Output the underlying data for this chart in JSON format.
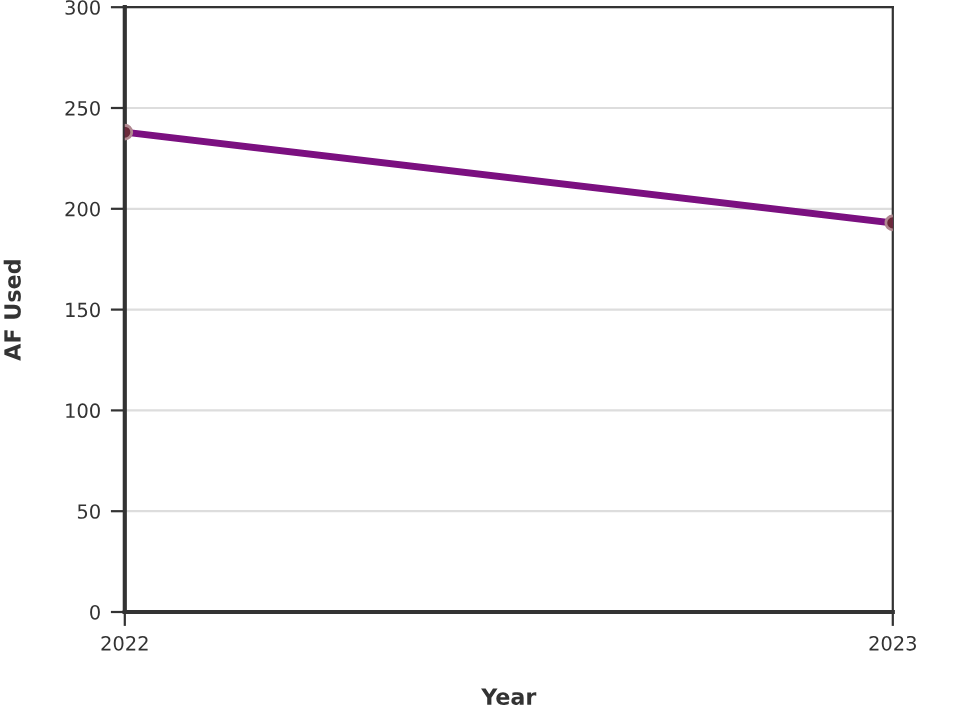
{
  "chart_data": {
    "type": "line",
    "xlabel": "Year",
    "ylabel": "AF Used",
    "x": [
      2022,
      2023
    ],
    "series": [
      {
        "color": "#7b1080",
        "values": [
          238,
          193
        ]
      }
    ],
    "xlim": [
      2022,
      2023
    ],
    "xticks": [
      2022,
      2023
    ],
    "ylim": [
      0,
      300
    ],
    "yticks": [
      0,
      50,
      100,
      150,
      200,
      250,
      300
    ],
    "grid": "y",
    "marker": "circle",
    "line_style": "solid",
    "legend": false
  }
}
